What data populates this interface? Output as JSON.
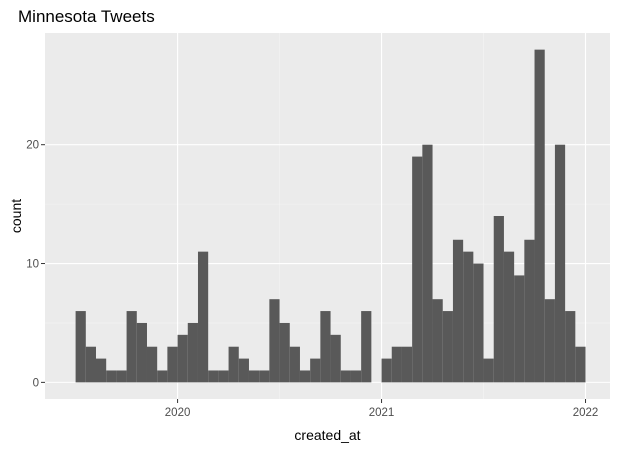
{
  "chart_data": {
    "type": "bar",
    "title": "Minnesota Tweets",
    "xlabel": "created_at",
    "ylabel": "count",
    "x_ticks": [
      {
        "label": "2020",
        "value": 2020.0
      },
      {
        "label": "2021",
        "value": 2021.0
      },
      {
        "label": "2022",
        "value": 2022.0
      }
    ],
    "y_ticks": [
      0,
      10,
      20
    ],
    "xlim": [
      2019.35,
      2022.12
    ],
    "ylim": [
      -1.4,
      29.4
    ],
    "bin_start": 2019.5,
    "bin_width": 0.05,
    "values": [
      6,
      3,
      2,
      1,
      1,
      6,
      5,
      3,
      1,
      3,
      4,
      5,
      11,
      1,
      1,
      3,
      2,
      1,
      1,
      7,
      5,
      3,
      1,
      2,
      6,
      4,
      1,
      1,
      6,
      0,
      2,
      3,
      3,
      19,
      20,
      7,
      6,
      12,
      11,
      10,
      2,
      14,
      11,
      9,
      12,
      28,
      7,
      20,
      6,
      3
    ],
    "grid": true,
    "colors": {
      "bar": "#595959",
      "panel": "#ebebeb",
      "grid_major": "#ffffff",
      "grid_minor": "#f5f5f5",
      "tick_text": "#4d4d4d"
    }
  }
}
